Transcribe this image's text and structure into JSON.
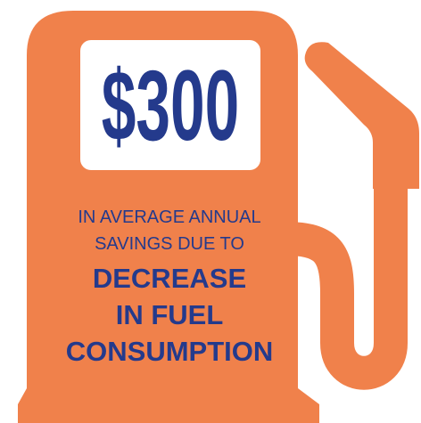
{
  "headline": "$300",
  "lines": [
    "IN AVERAGE ANNUAL",
    "SAVINGS DUE TO"
  ],
  "emphasis": [
    "DECREASE",
    "IN FUEL",
    "CONSUMPTION"
  ]
}
